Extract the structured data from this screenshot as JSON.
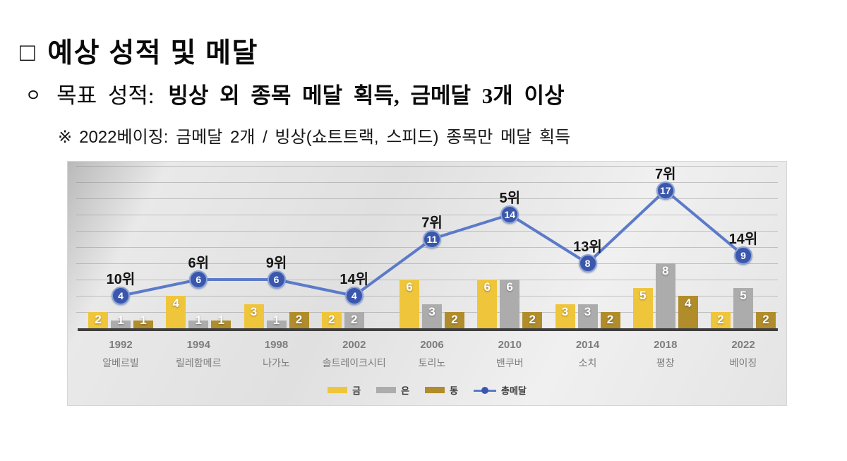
{
  "page": {
    "title": {
      "bullet": "□",
      "text": "예상 성적 및 메달"
    },
    "goal": {
      "bullet": "ㅇ",
      "label": "목표 성적:",
      "bold_text": "빙상 외 종목 메달 획득, 금메달 3개 이상"
    },
    "note": {
      "marker": "※",
      "text": "2022베이징: 금메달 2개 / 빙상(쇼트트랙, 스피드) 종목만 메달 획득"
    }
  },
  "chart_data": {
    "type": "bar+line",
    "categories": [
      {
        "year": "1992",
        "city": "알베르빌"
      },
      {
        "year": "1994",
        "city": "릴레함메르"
      },
      {
        "year": "1998",
        "city": "나가노"
      },
      {
        "year": "2002",
        "city": "솔트레이크시티"
      },
      {
        "year": "2006",
        "city": "토리노"
      },
      {
        "year": "2010",
        "city": "밴쿠버"
      },
      {
        "year": "2014",
        "city": "소치"
      },
      {
        "year": "2018",
        "city": "평창"
      },
      {
        "year": "2022",
        "city": "베이징"
      }
    ],
    "series": [
      {
        "key": "gold",
        "name": "금",
        "color": "#EFC53C",
        "values": [
          2,
          4,
          3,
          2,
          6,
          6,
          3,
          5,
          2
        ]
      },
      {
        "key": "silver",
        "name": "은",
        "color": "#ACACAC",
        "values": [
          1,
          1,
          1,
          2,
          3,
          6,
          3,
          8,
          5
        ]
      },
      {
        "key": "bronze",
        "name": "동",
        "color": "#B08C2A",
        "values": [
          1,
          1,
          2,
          0,
          2,
          2,
          2,
          4,
          2
        ]
      }
    ],
    "line_series": {
      "name": "총메달",
      "color": "#5B7AC9",
      "marker_fill": "#3A57AB",
      "values": [
        4,
        6,
        6,
        4,
        11,
        14,
        8,
        17,
        9
      ],
      "rank_labels": [
        "10위",
        "6위",
        "9위",
        "14위",
        "7위",
        "5위",
        "13위",
        "7위",
        "14위"
      ]
    },
    "ylim": [
      0,
      20
    ],
    "gridline_step": 2,
    "grid": true,
    "legend_position": "bottom"
  }
}
